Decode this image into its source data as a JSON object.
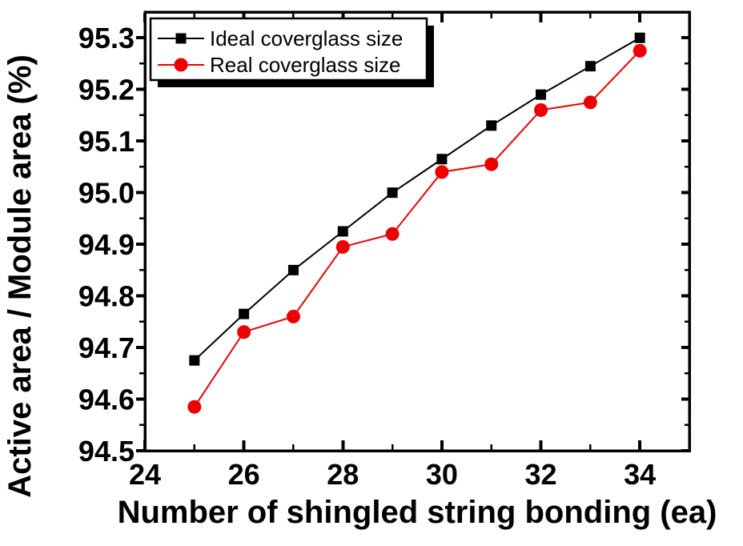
{
  "chart_data": {
    "type": "line",
    "title": "",
    "xlabel": "Number of shingled string bonding (ea)",
    "ylabel": "Active area / Module area  (%)",
    "x": [
      25,
      26,
      27,
      28,
      29,
      30,
      31,
      32,
      33,
      34
    ],
    "series": [
      {
        "name": "Ideal coverglass size",
        "color": "#000000",
        "marker": "square",
        "values": [
          94.675,
          94.765,
          94.85,
          94.925,
          95.0,
          95.065,
          95.13,
          95.19,
          95.245,
          95.3
        ]
      },
      {
        "name": "Real coverglass size",
        "color": "#ee0000",
        "marker": "circle",
        "values": [
          94.585,
          94.73,
          94.76,
          94.895,
          94.92,
          95.04,
          95.055,
          95.16,
          95.175,
          95.275
        ]
      }
    ],
    "xlim": [
      24,
      35
    ],
    "ylim": [
      94.5,
      95.35
    ],
    "x_major_ticks": [
      24,
      26,
      28,
      30,
      32,
      34
    ],
    "x_minor_ticks": [
      25,
      27,
      29,
      31,
      33,
      35
    ],
    "x_tick_labels": [
      "24",
      "26",
      "28",
      "30",
      "32",
      "34"
    ],
    "y_major_ticks": [
      94.5,
      94.6,
      94.7,
      94.8,
      94.9,
      95.0,
      95.1,
      95.2,
      95.3
    ],
    "y_minor_ticks": [
      94.55,
      94.65,
      94.75,
      94.85,
      94.95,
      95.05,
      95.15,
      95.25
    ],
    "y_tick_labels": [
      "94.5",
      "94.6",
      "94.7",
      "94.8",
      "94.9",
      "95.0",
      "95.1",
      "95.2",
      "95.3"
    ],
    "grid": false,
    "legend": {
      "position": "top-left",
      "border": true,
      "shadow": true
    },
    "colors": {
      "frame": "#000000",
      "background": "#ffffff",
      "shadow": "#000000"
    }
  }
}
